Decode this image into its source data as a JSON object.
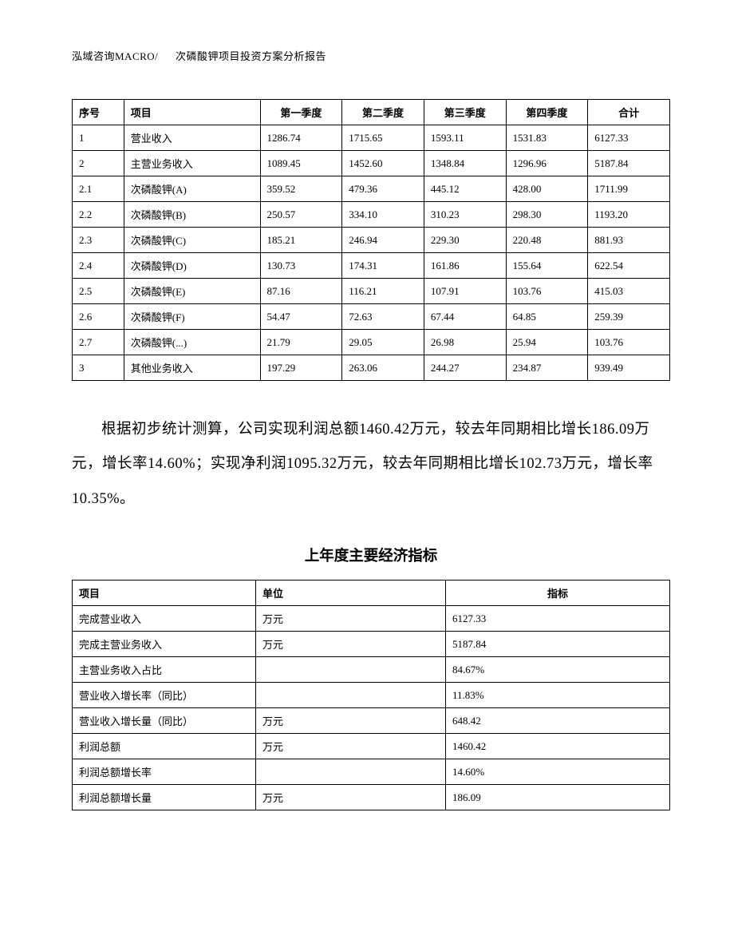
{
  "header": {
    "company": "泓域咨询MACRO/",
    "title": "次磷酸钾项目投资方案分析报告"
  },
  "table1": {
    "columns": [
      "序号",
      "项目",
      "第一季度",
      "第二季度",
      "第三季度",
      "第四季度",
      "合计"
    ],
    "rows": [
      [
        "1",
        "营业收入",
        "1286.74",
        "1715.65",
        "1593.11",
        "1531.83",
        "6127.33"
      ],
      [
        "2",
        "主营业务收入",
        "1089.45",
        "1452.60",
        "1348.84",
        "1296.96",
        "5187.84"
      ],
      [
        "2.1",
        "次磷酸钾(A)",
        "359.52",
        "479.36",
        "445.12",
        "428.00",
        "1711.99"
      ],
      [
        "2.2",
        "次磷酸钾(B)",
        "250.57",
        "334.10",
        "310.23",
        "298.30",
        "1193.20"
      ],
      [
        "2.3",
        "次磷酸钾(C)",
        "185.21",
        "246.94",
        "229.30",
        "220.48",
        "881.93"
      ],
      [
        "2.4",
        "次磷酸钾(D)",
        "130.73",
        "174.31",
        "161.86",
        "155.64",
        "622.54"
      ],
      [
        "2.5",
        "次磷酸钾(E)",
        "87.16",
        "116.21",
        "107.91",
        "103.76",
        "415.03"
      ],
      [
        "2.6",
        "次磷酸钾(F)",
        "54.47",
        "72.63",
        "67.44",
        "64.85",
        "259.39"
      ],
      [
        "2.7",
        "次磷酸钾(...)",
        "21.79",
        "29.05",
        "26.98",
        "25.94",
        "103.76"
      ],
      [
        "3",
        "其他业务收入",
        "197.29",
        "263.06",
        "244.27",
        "234.87",
        "939.49"
      ]
    ]
  },
  "paragraph": "根据初步统计测算，公司实现利润总额1460.42万元，较去年同期相比增长186.09万元，增长率14.60%；实现净利润1095.32万元，较去年同期相比增长102.73万元，增长率10.35%。",
  "section_title": "上年度主要经济指标",
  "table2": {
    "columns": [
      "项目",
      "单位",
      "指标"
    ],
    "rows": [
      [
        "完成营业收入",
        "万元",
        "6127.33"
      ],
      [
        "完成主营业务收入",
        "万元",
        "5187.84"
      ],
      [
        "主营业务收入占比",
        "",
        "84.67%"
      ],
      [
        "营业收入增长率（同比）",
        "",
        "11.83%"
      ],
      [
        "营业收入增长量（同比）",
        "万元",
        "648.42"
      ],
      [
        "利润总额",
        "万元",
        "1460.42"
      ],
      [
        "利润总额增长率",
        "",
        "14.60%"
      ],
      [
        "利润总额增长量",
        "万元",
        "186.09"
      ]
    ]
  }
}
